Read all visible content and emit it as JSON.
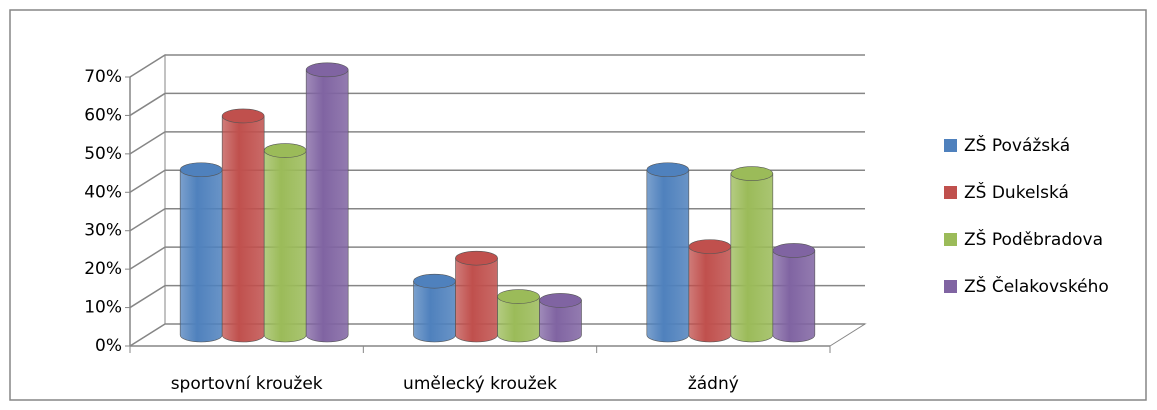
{
  "chart_data": {
    "type": "bar3d",
    "categories": [
      "sportovní kroužek",
      "umělecký kroužek",
      "žádný"
    ],
    "series": [
      {
        "name": "ZŠ Povážská",
        "color": "#4f81bd",
        "values": [
          43,
          14,
          43
        ]
      },
      {
        "name": "ZŠ Dukelská",
        "color": "#c0504d",
        "values": [
          57,
          20,
          23
        ]
      },
      {
        "name": "ZŠ Poděbradova",
        "color": "#9bbb59",
        "values": [
          48,
          10,
          42
        ]
      },
      {
        "name": "ZŠ Čelakovského",
        "color": "#8064a2",
        "values": [
          69,
          9,
          22
        ]
      }
    ],
    "ylim": [
      0,
      70
    ],
    "yticks": [
      {
        "value": 0,
        "label": "0%"
      },
      {
        "value": 10,
        "label": "10%"
      },
      {
        "value": 20,
        "label": "20%"
      },
      {
        "value": 30,
        "label": "30%"
      },
      {
        "value": 40,
        "label": "40%"
      },
      {
        "value": 50,
        "label": "50%"
      },
      {
        "value": 60,
        "label": "60%"
      },
      {
        "value": 70,
        "label": "70%"
      }
    ],
    "grid": true,
    "legend": "right"
  }
}
